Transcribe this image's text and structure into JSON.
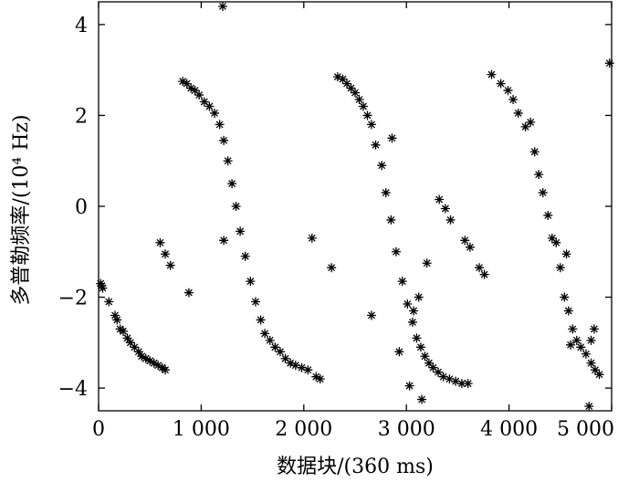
{
  "chart_data": {
    "type": "scatter",
    "xlabel": "数据块/(360 ms)",
    "ylabel": "多普勒频率/(10⁴ Hz)",
    "xlim": [
      0,
      5000
    ],
    "ylim": [
      -4.5,
      4.5
    ],
    "x_ticks": [
      0,
      1000,
      2000,
      3000,
      4000,
      5000
    ],
    "x_tick_labels": [
      "0",
      "1 000",
      "2 000",
      "3 000",
      "4 000",
      "5 000"
    ],
    "y_ticks": [
      4,
      2,
      0,
      -2,
      -4
    ],
    "y_tick_labels": [
      "4",
      "2",
      "0",
      "−2",
      "−4"
    ],
    "grid": false,
    "marker": "star",
    "series": [
      {
        "points": [
          [
            20,
            -1.7
          ],
          [
            30,
            -1.75
          ],
          [
            40,
            -1.8
          ],
          [
            100,
            -2.1
          ],
          [
            160,
            -2.4
          ],
          [
            180,
            -2.5
          ],
          [
            210,
            -2.7
          ],
          [
            240,
            -2.75
          ],
          [
            280,
            -2.9
          ],
          [
            310,
            -3.0
          ],
          [
            350,
            -3.1
          ],
          [
            390,
            -3.2
          ],
          [
            420,
            -3.3
          ],
          [
            460,
            -3.35
          ],
          [
            500,
            -3.4
          ],
          [
            540,
            -3.45
          ],
          [
            580,
            -3.5
          ],
          [
            620,
            -3.55
          ],
          [
            650,
            -3.6
          ],
          [
            600,
            -0.8
          ],
          [
            650,
            -1.05
          ],
          [
            700,
            -1.3
          ],
          [
            880,
            -1.9
          ],
          [
            820,
            2.75
          ],
          [
            860,
            2.7
          ],
          [
            900,
            2.6
          ],
          [
            940,
            2.55
          ],
          [
            980,
            2.45
          ],
          [
            1030,
            2.3
          ],
          [
            1080,
            2.2
          ],
          [
            1130,
            2.05
          ],
          [
            1180,
            1.8
          ],
          [
            1220,
            1.45
          ],
          [
            1260,
            1.0
          ],
          [
            1300,
            0.5
          ],
          [
            1340,
            0.0
          ],
          [
            1380,
            -0.55
          ],
          [
            1430,
            -1.1
          ],
          [
            1480,
            -1.65
          ],
          [
            1530,
            -2.1
          ],
          [
            1580,
            -2.5
          ],
          [
            1620,
            -2.8
          ],
          [
            1670,
            -2.95
          ],
          [
            1720,
            -3.1
          ],
          [
            1770,
            -3.2
          ],
          [
            1820,
            -3.35
          ],
          [
            1870,
            -3.45
          ],
          [
            1920,
            -3.5
          ],
          [
            1980,
            -3.55
          ],
          [
            2040,
            -3.6
          ],
          [
            2120,
            -3.75
          ],
          [
            2160,
            -3.8
          ],
          [
            1210,
            4.4
          ],
          [
            1220,
            -0.75
          ],
          [
            2080,
            -0.7
          ],
          [
            2270,
            -1.35
          ],
          [
            2330,
            2.85
          ],
          [
            2380,
            2.8
          ],
          [
            2420,
            2.7
          ],
          [
            2460,
            2.6
          ],
          [
            2500,
            2.5
          ],
          [
            2540,
            2.35
          ],
          [
            2580,
            2.2
          ],
          [
            2620,
            2.0
          ],
          [
            2660,
            1.8
          ],
          [
            2700,
            1.35
          ],
          [
            2760,
            0.9
          ],
          [
            2800,
            0.3
          ],
          [
            2850,
            -0.3
          ],
          [
            2900,
            -1.0
          ],
          [
            2960,
            -1.65
          ],
          [
            3010,
            -2.15
          ],
          [
            3060,
            -2.55
          ],
          [
            3100,
            -2.9
          ],
          [
            3140,
            -3.1
          ],
          [
            3180,
            -3.3
          ],
          [
            3220,
            -3.45
          ],
          [
            3260,
            -3.55
          ],
          [
            3310,
            -3.65
          ],
          [
            3360,
            -3.75
          ],
          [
            3420,
            -3.8
          ],
          [
            3480,
            -3.85
          ],
          [
            3540,
            -3.9
          ],
          [
            3600,
            -3.9
          ],
          [
            2860,
            1.5
          ],
          [
            2660,
            -2.4
          ],
          [
            2930,
            -3.2
          ],
          [
            3030,
            -3.95
          ],
          [
            3150,
            -4.25
          ],
          [
            3120,
            -2.0
          ],
          [
            3070,
            -2.3
          ],
          [
            3200,
            -1.25
          ],
          [
            3320,
            0.15
          ],
          [
            3380,
            -0.05
          ],
          [
            3430,
            -0.3
          ],
          [
            3570,
            -0.75
          ],
          [
            3620,
            -0.9
          ],
          [
            3710,
            -1.35
          ],
          [
            3760,
            -1.5
          ],
          [
            3830,
            2.9
          ],
          [
            3920,
            2.7
          ],
          [
            3990,
            2.55
          ],
          [
            4040,
            2.35
          ],
          [
            4090,
            2.05
          ],
          [
            4160,
            1.75
          ],
          [
            4210,
            1.85
          ],
          [
            4250,
            1.2
          ],
          [
            4290,
            0.7
          ],
          [
            4330,
            0.3
          ],
          [
            4380,
            -0.2
          ],
          [
            4420,
            -0.7
          ],
          [
            4460,
            -0.8
          ],
          [
            4500,
            -1.35
          ],
          [
            4540,
            -2.0
          ],
          [
            4580,
            -2.3
          ],
          [
            4620,
            -2.7
          ],
          [
            4660,
            -2.95
          ],
          [
            4700,
            -3.1
          ],
          [
            4750,
            -3.25
          ],
          [
            4800,
            -3.45
          ],
          [
            4840,
            -3.6
          ],
          [
            4880,
            -3.7
          ],
          [
            4560,
            -1.05
          ],
          [
            4600,
            -3.05
          ],
          [
            4800,
            -2.95
          ],
          [
            4830,
            -2.7
          ],
          [
            4780,
            -4.4
          ],
          [
            4980,
            3.15
          ]
        ]
      }
    ]
  }
}
